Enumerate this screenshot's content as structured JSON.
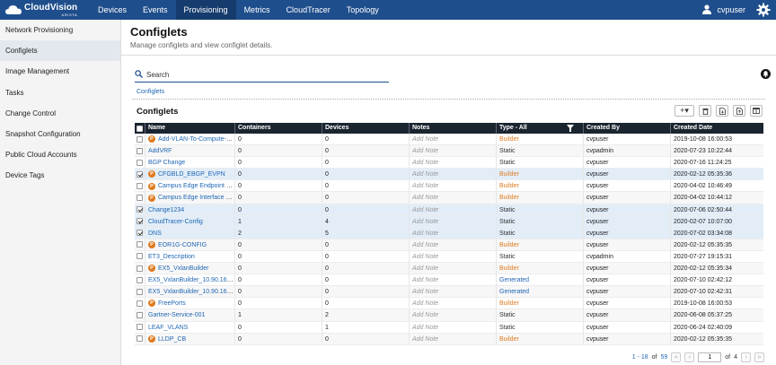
{
  "app": {
    "name": "CloudVision",
    "sub": "ARISTA"
  },
  "nav": [
    "Devices",
    "Events",
    "Provisioning",
    "Metrics",
    "CloudTracer",
    "Topology"
  ],
  "nav_active": "Provisioning",
  "user": {
    "name": "cvpuser"
  },
  "sidebar": {
    "items": [
      {
        "label": "Network Provisioning"
      },
      {
        "label": "Configlets"
      },
      {
        "label": "Image Management"
      },
      {
        "label": "Tasks"
      },
      {
        "label": "Change Control"
      },
      {
        "label": "Snapshot Configuration"
      },
      {
        "label": "Public Cloud Accounts"
      },
      {
        "label": "Device Tags"
      }
    ],
    "active": "Configlets"
  },
  "page": {
    "title": "Configlets",
    "subtitle": "Manage configlets and view configlet details."
  },
  "search": {
    "placeholder": "Search"
  },
  "breadcrumb": "Configlets",
  "section_title": "Configlets",
  "table": {
    "columns": [
      "Name",
      "Containers",
      "Devices",
      "Notes",
      "Type - All",
      "Created By",
      "Created Date"
    ],
    "rows": [
      {
        "checked": false,
        "p": true,
        "name": "Add-VLAN-To-Compute-T...",
        "containers": "0",
        "devices": "0",
        "notes": "Add Note",
        "type": "Builder",
        "by": "cvpuser",
        "date": "2019-10-08 16:00:53"
      },
      {
        "checked": false,
        "p": false,
        "name": "AddVRF",
        "containers": "0",
        "devices": "0",
        "notes": "Add Note",
        "type": "Static",
        "by": "cvpadmin",
        "date": "2020-07-23 10:22:44"
      },
      {
        "checked": false,
        "p": false,
        "name": "BGP Change",
        "containers": "0",
        "devices": "0",
        "notes": "Add Note",
        "type": "Static",
        "by": "cvpuser",
        "date": "2020-07-16 11:24:25"
      },
      {
        "checked": true,
        "p": true,
        "name": "CFGBLD_EBGP_EVPN",
        "containers": "0",
        "devices": "0",
        "notes": "Add Note",
        "type": "Builder",
        "by": "cvpuser",
        "date": "2020-02-12 05:35:36"
      },
      {
        "checked": false,
        "p": true,
        "name": "Campus Edge Endpoint D...",
        "containers": "0",
        "devices": "0",
        "notes": "Add Note",
        "type": "Builder",
        "by": "cvpuser",
        "date": "2020-04-02 10:46:49"
      },
      {
        "checked": false,
        "p": true,
        "name": "Campus Edge Interface P...",
        "containers": "0",
        "devices": "0",
        "notes": "Add Note",
        "type": "Builder",
        "by": "cvpuser",
        "date": "2020-04-02 10:44:12"
      },
      {
        "checked": true,
        "p": false,
        "name": "Change1234",
        "containers": "0",
        "devices": "0",
        "notes": "Add Note",
        "type": "Static",
        "by": "cvpuser",
        "date": "2020-07-06 02:50:44"
      },
      {
        "checked": true,
        "p": false,
        "name": "CloudTracer-Config",
        "containers": "1",
        "devices": "4",
        "notes": "Add Note",
        "type": "Static",
        "by": "cvpuser",
        "date": "2020-02-07 10:07:00"
      },
      {
        "checked": true,
        "p": false,
        "name": "DNS",
        "containers": "2",
        "devices": "5",
        "notes": "Add Note",
        "type": "Static",
        "by": "cvpuser",
        "date": "2020-07-02 03:34:08"
      },
      {
        "checked": false,
        "p": true,
        "name": "EOR1G-CONFIG",
        "containers": "0",
        "devices": "0",
        "notes": "Add Note",
        "type": "Builder",
        "by": "cvpuser",
        "date": "2020-02-12 05:35:35"
      },
      {
        "checked": false,
        "p": false,
        "name": "ET3_Description",
        "containers": "0",
        "devices": "0",
        "notes": "Add Note",
        "type": "Static",
        "by": "cvpadmin",
        "date": "2020-07-27 19:15:31"
      },
      {
        "checked": false,
        "p": true,
        "name": "EX5_VxlanBuilder",
        "containers": "0",
        "devices": "0",
        "notes": "Add Note",
        "type": "Builder",
        "by": "cvpuser",
        "date": "2020-02-12 05:35:34"
      },
      {
        "checked": false,
        "p": false,
        "name": "EX5_VxlanBuilder_10.90.165...",
        "containers": "0",
        "devices": "0",
        "notes": "Add Note",
        "type": "Generated",
        "by": "cvpuser",
        "date": "2020-07-10 02:42:12"
      },
      {
        "checked": false,
        "p": false,
        "name": "EX5_VxlanBuilder_10.90.165...",
        "containers": "0",
        "devices": "0",
        "notes": "Add Note",
        "type": "Generated",
        "by": "cvpuser",
        "date": "2020-07-10 02:42:31"
      },
      {
        "checked": false,
        "p": true,
        "name": "FreePorts",
        "containers": "0",
        "devices": "0",
        "notes": "Add Note",
        "type": "Builder",
        "by": "cvpuser",
        "date": "2019-10-08 16:00:53"
      },
      {
        "checked": false,
        "p": false,
        "name": "Gartner-Service-001",
        "containers": "1",
        "devices": "2",
        "notes": "Add Note",
        "type": "Static",
        "by": "cvpuser",
        "date": "2020-06-08 05:37:25"
      },
      {
        "checked": false,
        "p": false,
        "name": "LEAF_VLANS",
        "containers": "0",
        "devices": "1",
        "notes": "Add Note",
        "type": "Static",
        "by": "cvpuser",
        "date": "2020-06-24 02:40:09"
      },
      {
        "checked": false,
        "p": true,
        "name": "LLDP_CB",
        "containers": "0",
        "devices": "0",
        "notes": "Add Note",
        "type": "Builder",
        "by": "cvpuser",
        "date": "2020-02-12 05:35:35"
      }
    ]
  },
  "pager": {
    "range": "1 - 18",
    "of_label": "of",
    "total": "59",
    "page": "1",
    "page_of": "of",
    "pages": "4"
  },
  "colors": {
    "nav_bg": "#1f4e8c",
    "builder": "#e07a1f",
    "link": "#1f66b3"
  },
  "icons": {
    "user": "user-icon",
    "gear": "gear-icon",
    "search": "search-icon",
    "bell": "notification-icon"
  }
}
